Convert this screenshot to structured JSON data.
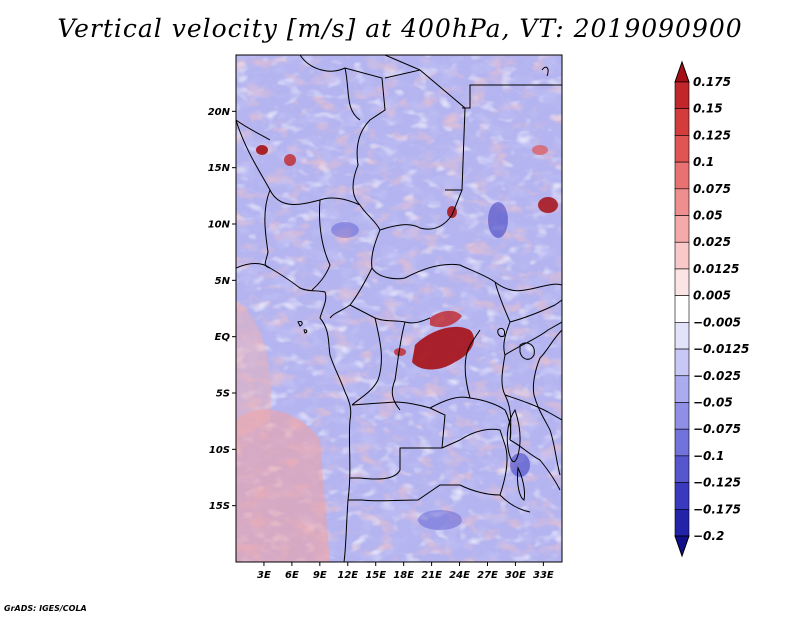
{
  "title": "Vertical velocity [m/s] at 400hPa, VT: 2019090900",
  "credit": "GrADS: IGES/COLA",
  "map": {
    "lat_labels": [
      "20N",
      "15N",
      "10N",
      "5N",
      "EQ",
      "5S",
      "10S",
      "15S"
    ],
    "lat_values": [
      20,
      15,
      10,
      5,
      0,
      -5,
      -10,
      -15
    ],
    "lon_labels": [
      "3E",
      "6E",
      "9E",
      "12E",
      "15E",
      "18E",
      "21E",
      "24E",
      "27E",
      "30E",
      "33E"
    ],
    "lon_values": [
      3,
      6,
      9,
      12,
      15,
      18,
      21,
      24,
      27,
      30,
      33
    ],
    "lon_range": [
      0,
      35
    ],
    "lat_range": [
      -20,
      25
    ]
  },
  "colorbar": {
    "levels": [
      "0.175",
      "0.15",
      "0.125",
      "0.1",
      "0.075",
      "0.05",
      "0.025",
      "0.0125",
      "0.005",
      "−0.005",
      "−0.0125",
      "−0.025",
      "−0.05",
      "−0.075",
      "−0.1",
      "−0.125",
      "−0.175",
      "−0.2"
    ],
    "colors": [
      "#a50f15",
      "#c0262a",
      "#d43c3c",
      "#e05454",
      "#e87272",
      "#ef8e8e",
      "#f5aaaa",
      "#f9c8c8",
      "#fce4e4",
      "#ffffff",
      "#e2e2fb",
      "#c8c8f6",
      "#ababef",
      "#8f8fe6",
      "#7272db",
      "#5656cf",
      "#3a3ac0",
      "#2323aa",
      "#120f8c"
    ]
  }
}
